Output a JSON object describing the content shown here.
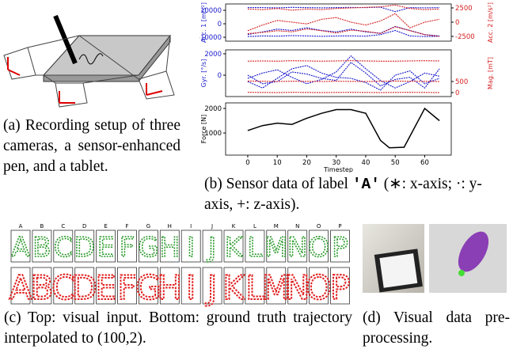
{
  "panel_a": {
    "caption": "(a) Recording setup of three cameras, a sensor-enhanced pen, and a tablet."
  },
  "panel_b": {
    "caption": [
      "(b) Sensor data of label ",
      "'A'",
      " (∗: x-axis; ·: y-axis, +: z-axis)."
    ]
  },
  "chart_data": [
    {
      "type": "line",
      "ylabel": "Acc. 1 [m/s²]",
      "y2label": "Acc. 2 [m/s²]",
      "xlim": [
        -7.5,
        69
      ],
      "x": [
        0,
        5,
        10,
        15,
        20,
        25,
        30,
        35,
        40,
        45,
        50,
        55,
        60,
        65
      ],
      "ylim": [
        -12900,
        14700
      ],
      "yticks": [
        -10000,
        0,
        10000
      ],
      "ycolor": "#1a1acc",
      "y2lim": [
        -3333,
        3194
      ],
      "y2ticks": [
        -2500,
        0,
        2500
      ],
      "y2color": "#d62020",
      "series": [
        {
          "color": "#1a1acc",
          "values": [
            12000,
            12000,
            11800,
            12200,
            12000,
            11800,
            12000,
            12100,
            12000,
            12300,
            9000,
            12000,
            11800,
            12000
          ]
        },
        {
          "color": "#1a1acc",
          "values": [
            -8000,
            -6000,
            -4000,
            -5000,
            -3000,
            -5000,
            -6000,
            -4000,
            -6000,
            -7000,
            -2000,
            -5000,
            -8000,
            -9000
          ]
        },
        {
          "color": "#1a1acc",
          "values": [
            -9500,
            -9000,
            -9200,
            -8800,
            -9000,
            -9300,
            -9100,
            -9000,
            -9200,
            -8000,
            -5000,
            -9000,
            -9500,
            -9300
          ]
        },
        {
          "color": "#d62020",
          "axis": "y2",
          "values": [
            2300,
            2200,
            2400,
            2100,
            2300,
            2200,
            2400,
            2500,
            2600,
            2700,
            3000,
            2400,
            2200,
            2300
          ]
        },
        {
          "color": "#d62020",
          "axis": "y2",
          "values": [
            -1500,
            -500,
            300,
            0,
            -300,
            500,
            800,
            0,
            -500,
            200,
            1500,
            -1000,
            0,
            500
          ]
        },
        {
          "color": "#d62020",
          "axis": "y2",
          "values": [
            -2000,
            -1800,
            -1500,
            -1700,
            -1200,
            -1500,
            -1900,
            -1400,
            -1600,
            -2000,
            -800,
            -1500,
            -2200,
            -2500
          ]
        }
      ]
    },
    {
      "type": "line",
      "ylabel": "Gyr. [°/s]",
      "y2label": "Mag. [mT]",
      "xlim": [
        -7.5,
        69
      ],
      "x": [
        0,
        5,
        10,
        15,
        20,
        25,
        30,
        35,
        40,
        45,
        50,
        55,
        60,
        65
      ],
      "ylim": [
        -2000,
        2370
      ],
      "yticks": [
        0,
        2000
      ],
      "ycolor": "#1a1acc",
      "y2lim": [
        -180,
        1930
      ],
      "y2ticks": [
        0,
        500
      ],
      "y2color": "#d62020",
      "series": [
        {
          "color": "#1a1acc",
          "values": [
            -300,
            200,
            500,
            -200,
            -800,
            -400,
            300,
            1800,
            600,
            -500,
            -1200,
            -600,
            200,
            -100
          ]
        },
        {
          "color": "#1a1acc",
          "values": [
            0,
            -800,
            -600,
            300,
            100,
            -300,
            -500,
            1200,
            200,
            -1000,
            -400,
            -200,
            -1200,
            600
          ]
        },
        {
          "color": "#1a1acc",
          "values": [
            -600,
            -1200,
            -300,
            600,
            900,
            200,
            -200,
            -300,
            -700,
            -1400,
            0,
            400,
            -800,
            -300
          ]
        },
        {
          "color": "#d62020",
          "axis": "y2",
          "values": [
            1420,
            1430,
            1420,
            1440,
            1430,
            1420,
            1430,
            1440,
            1430,
            1420,
            1420,
            1430,
            1440,
            1430
          ]
        },
        {
          "color": "#d62020",
          "axis": "y2",
          "values": [
            520,
            510,
            500,
            515,
            505,
            500,
            510,
            505,
            500,
            510,
            520,
            510,
            505,
            500
          ]
        },
        {
          "color": "#d62020",
          "axis": "y2",
          "values": [
            10,
            5,
            0,
            8,
            5,
            0,
            5,
            10,
            5,
            0,
            5,
            8,
            5,
            0
          ]
        }
      ]
    },
    {
      "type": "line",
      "ylabel": "Force [N]",
      "xlabel": "Timestep",
      "xlim": [
        -7.5,
        69
      ],
      "x": [
        0,
        5,
        10,
        15,
        20,
        25,
        30,
        35,
        40,
        45,
        48,
        53,
        60,
        65
      ],
      "xticks": [
        0,
        10,
        20,
        30,
        40,
        50,
        60
      ],
      "ylim": [
        100,
        2225
      ],
      "yticks": [
        1000,
        2000
      ],
      "ycolor": "#000000",
      "series": [
        {
          "color": "#000000",
          "values": [
            1100,
            1300,
            1400,
            1350,
            1600,
            1800,
            1950,
            1950,
            1800,
            700,
            400,
            420,
            2000,
            1500
          ]
        }
      ]
    }
  ],
  "panel_c": {
    "letters": [
      "A",
      "B",
      "C",
      "D",
      "E",
      "F",
      "G",
      "H",
      "I",
      "J",
      "K",
      "L",
      "M",
      "N",
      "O",
      "P"
    ],
    "caption": "(c) Top: visual input. Bottom: ground truth trajectory interpolated to (100,2)."
  },
  "panel_d": {
    "caption": "(d) Visual data pre-processing."
  }
}
